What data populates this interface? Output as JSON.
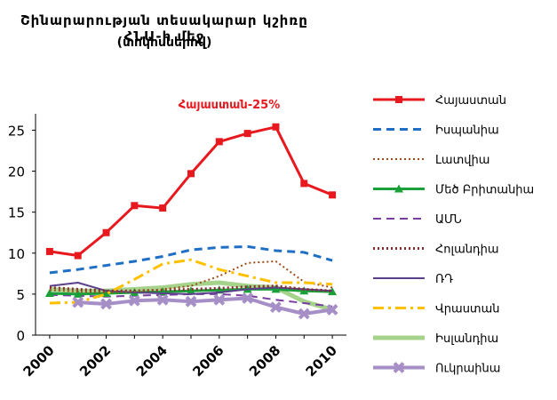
{
  "chart_data": {
    "type": "line",
    "title": "Շինարարության տեսակարար կշիռը ՀՆԱ-ի մեջ",
    "subtitle": "(տոկոսներով)",
    "annotation": {
      "text": "Հայաստան-25%",
      "color": "#e8191e"
    },
    "x": [
      2000,
      2001,
      2002,
      2003,
      2004,
      2005,
      2006,
      2007,
      2008,
      2009,
      2010
    ],
    "x_tick_labels": [
      "2000",
      "2002",
      "2004",
      "2006",
      "2008",
      "2010"
    ],
    "x_ticks": [
      2000,
      2002,
      2004,
      2006,
      2008,
      2010
    ],
    "y_ticks": [
      0,
      5,
      10,
      15,
      20,
      25
    ],
    "ylim": [
      0,
      27
    ],
    "xlim": [
      1999.5,
      2010.5
    ],
    "grid": false,
    "legend": "right",
    "series": [
      {
        "name": "Հայաստան",
        "color": "#e8191e",
        "style": "solid",
        "width": 3,
        "marker": "square",
        "values": [
          10.2,
          9.7,
          12.5,
          15.8,
          15.5,
          19.7,
          23.6,
          24.6,
          25.4,
          18.5,
          17.1
        ]
      },
      {
        "name": "Իսպանիա",
        "color": "#1f6fc5",
        "style": "dash",
        "width": 3,
        "marker": "none",
        "values": [
          7.6,
          8.0,
          8.5,
          9.0,
          9.6,
          10.4,
          10.7,
          10.8,
          10.3,
          10.1,
          9.1
        ]
      },
      {
        "name": "Լատվիա",
        "color": "#9e4b1a",
        "style": "dot",
        "width": 2,
        "marker": "none",
        "values": [
          5.5,
          5.3,
          5.2,
          5.3,
          5.6,
          6.0,
          7.2,
          8.8,
          9.0,
          6.5,
          5.8
        ]
      },
      {
        "name": "Մեծ Բրիտանիա",
        "color": "#1aa038",
        "style": "solid",
        "width": 3,
        "marker": "triangle",
        "values": [
          5.1,
          5.0,
          5.1,
          5.2,
          5.3,
          5.4,
          5.5,
          5.6,
          5.6,
          5.4,
          5.3
        ]
      },
      {
        "name": "ԱՄՆ",
        "color": "#7a3da0",
        "style": "dash",
        "width": 2,
        "marker": "none",
        "values": [
          4.9,
          4.8,
          4.7,
          4.8,
          4.9,
          5.0,
          5.0,
          4.8,
          4.3,
          3.9,
          3.5
        ]
      },
      {
        "name": "Հոլանդիա",
        "color": "#8b2b2b",
        "style": "dot",
        "width": 3,
        "marker": "none",
        "values": [
          5.8,
          5.6,
          5.4,
          5.4,
          5.5,
          5.6,
          5.7,
          5.9,
          6.0,
          5.6,
          5.4
        ]
      },
      {
        "name": "ՌԴ",
        "color": "#5a3f8a",
        "style": "solid",
        "width": 2,
        "marker": "none",
        "values": [
          6.0,
          6.4,
          5.4,
          5.2,
          5.1,
          5.0,
          5.2,
          5.6,
          5.8,
          5.6,
          5.4
        ]
      },
      {
        "name": "Վրաստան",
        "color": "#ffc000",
        "style": "dashdot",
        "width": 3,
        "marker": "none",
        "values": [
          3.9,
          4.0,
          5.0,
          6.8,
          8.7,
          9.2,
          8.0,
          7.2,
          6.4,
          6.4,
          6.2
        ]
      },
      {
        "name": "Իսլանդիա",
        "color": "#a6d38c",
        "style": "solid",
        "width": 5,
        "marker": "none",
        "values": [
          5.6,
          5.4,
          5.4,
          5.6,
          5.8,
          6.2,
          6.4,
          6.0,
          5.8,
          4.1,
          3.1
        ]
      },
      {
        "name": "Ուկրաինա",
        "color": "#a68fc6",
        "style": "solid",
        "width": 4,
        "marker": "cross",
        "values": [
          null,
          4.0,
          3.8,
          4.2,
          4.3,
          4.1,
          4.3,
          4.5,
          3.4,
          2.6,
          3.1
        ]
      }
    ]
  }
}
